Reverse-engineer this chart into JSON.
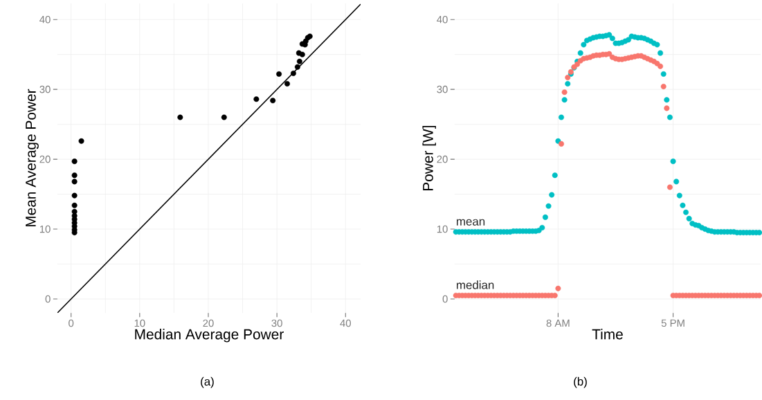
{
  "chart_data": [
    {
      "type": "scatter",
      "xlabel": "Median Average Power",
      "ylabel": "Mean Average Power",
      "annotations": [
        "(a)"
      ],
      "xlim": [
        -2,
        42.2
      ],
      "ylim": [
        -2,
        42.3
      ],
      "xticks": [
        0,
        10,
        20,
        30,
        40
      ],
      "yticks": [
        0,
        10,
        20,
        30,
        40
      ],
      "grid": true,
      "series": [
        {
          "color": "#000000",
          "marker": "circle",
          "x": [
            0.5,
            0.5,
            0.5,
            0.5,
            0.5,
            0.5,
            0.5,
            0.5,
            0.5,
            0.5,
            0.5,
            0.5,
            1.5,
            15.9,
            22.3,
            27.0,
            29.4,
            30.3,
            31.5,
            32.4,
            33.0,
            33.3,
            33.2,
            33.7,
            33.7,
            34.1,
            34.2,
            34.5,
            34.8
          ],
          "values": [
            9.5,
            9.9,
            10.4,
            10.9,
            11.4,
            11.9,
            12.5,
            13.4,
            14.8,
            16.8,
            17.7,
            19.7,
            22.6,
            26.0,
            26.0,
            28.6,
            28.4,
            32.2,
            30.8,
            32.3,
            33.2,
            34.0,
            35.2,
            35.0,
            36.5,
            36.4,
            36.9,
            37.4,
            37.6
          ]
        },
        {
          "type": "line",
          "color": "#000000",
          "line_style": "solid",
          "x": [
            -2,
            42.2
          ],
          "values": [
            -2,
            42.2
          ]
        }
      ]
    },
    {
      "type": "scatter",
      "xlabel": "Time",
      "ylabel": "Power [W]",
      "annotations": [
        "(b)"
      ],
      "ylim": [
        -2,
        42.3
      ],
      "yticks": [
        0,
        10,
        20,
        30,
        40
      ],
      "grid": true,
      "categories": [
        null,
        null,
        null,
        null,
        null,
        null,
        null,
        null,
        null,
        null,
        null,
        null,
        null,
        null,
        null,
        null,
        null,
        null,
        null,
        null,
        null,
        null,
        null,
        null,
        null,
        null,
        null,
        null,
        null,
        null,
        null,
        null,
        "8 AM",
        null,
        null,
        null,
        null,
        null,
        null,
        null,
        null,
        null,
        null,
        null,
        null,
        null,
        null,
        null,
        null,
        null,
        null,
        null,
        null,
        null,
        null,
        null,
        null,
        null,
        null,
        null,
        null,
        null,
        null,
        null,
        null,
        null,
        null,
        null,
        "5 PM",
        null,
        null,
        null,
        null,
        null,
        null,
        null,
        null,
        null,
        null,
        null,
        null,
        null,
        null,
        null,
        null,
        null,
        null,
        null,
        null,
        null,
        null,
        null,
        null,
        null,
        null,
        null
      ],
      "series": [
        {
          "name": "mean",
          "color": "#00bfc4",
          "marker": "circle",
          "values": [
            9.6,
            9.6,
            9.6,
            9.6,
            9.6,
            9.6,
            9.6,
            9.6,
            9.6,
            9.6,
            9.6,
            9.6,
            9.6,
            9.6,
            9.6,
            9.6,
            9.6,
            9.6,
            9.7,
            9.7,
            9.7,
            9.7,
            9.7,
            9.7,
            9.7,
            9.7,
            9.8,
            10.2,
            11.7,
            13.3,
            14.9,
            17.7,
            22.6,
            26.0,
            28.5,
            30.8,
            32.2,
            33.1,
            34.0,
            35.2,
            36.4,
            37.0,
            37.2,
            37.4,
            37.5,
            37.6,
            37.6,
            37.7,
            37.8,
            37.3,
            36.6,
            36.6,
            36.7,
            36.9,
            37.1,
            37.6,
            37.5,
            37.4,
            37.4,
            37.3,
            37.1,
            36.9,
            36.6,
            36.4,
            35.2,
            32.2,
            28.5,
            26.0,
            19.7,
            16.8,
            14.8,
            13.4,
            12.4,
            11.5,
            10.8,
            10.6,
            10.5,
            10.2,
            10.0,
            9.8,
            9.7,
            9.6,
            9.6,
            9.6,
            9.6,
            9.6,
            9.6,
            9.6,
            9.5,
            9.5,
            9.5,
            9.5,
            9.5,
            9.5,
            9.5,
            9.5
          ]
        },
        {
          "name": "median",
          "color": "#f8766d",
          "marker": "circle",
          "values": [
            0.5,
            0.5,
            0.5,
            0.5,
            0.5,
            0.5,
            0.5,
            0.5,
            0.5,
            0.5,
            0.5,
            0.5,
            0.5,
            0.5,
            0.5,
            0.5,
            0.5,
            0.5,
            0.5,
            0.5,
            0.5,
            0.5,
            0.5,
            0.5,
            0.5,
            0.5,
            0.5,
            0.5,
            0.5,
            0.5,
            0.5,
            0.5,
            1.5,
            22.2,
            29.6,
            31.7,
            32.5,
            33.2,
            33.6,
            34.1,
            34.4,
            34.5,
            34.6,
            34.8,
            34.9,
            34.9,
            35.0,
            35.0,
            35.1,
            34.6,
            34.4,
            34.3,
            34.3,
            34.4,
            34.5,
            34.6,
            34.7,
            34.8,
            34.8,
            34.6,
            34.4,
            34.2,
            34.0,
            33.7,
            33.3,
            30.4,
            27.3,
            16.0,
            0.5,
            0.5,
            0.5,
            0.5,
            0.5,
            0.5,
            0.5,
            0.5,
            0.5,
            0.5,
            0.5,
            0.5,
            0.5,
            0.5,
            0.5,
            0.5,
            0.5,
            0.5,
            0.5,
            0.5,
            0.5,
            0.5,
            0.5,
            0.5,
            0.5,
            0.5,
            0.5,
            0.5
          ]
        }
      ]
    }
  ]
}
